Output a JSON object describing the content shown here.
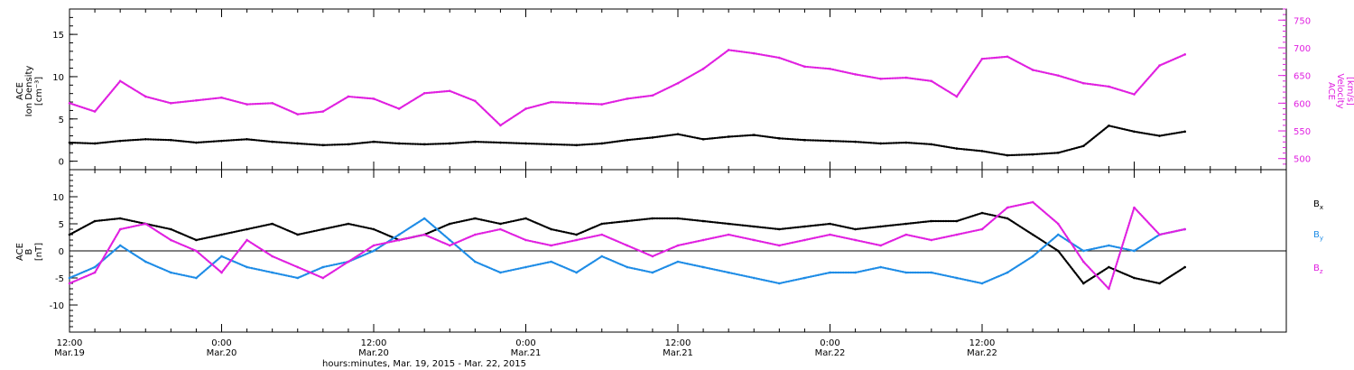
{
  "chart_data": [
    {
      "type": "scatter",
      "title": "",
      "xlabel": "hours:minutes, Mar. 19, 2015 - Mar. 22, 2015",
      "ylabel_left": [
        "ACE",
        "Ion Density",
        "[cm⁻³]"
      ],
      "ylabel_right": [
        "ACE",
        "Velocity",
        "[km/s]"
      ],
      "xlim_hours": [
        0,
        96
      ],
      "ylim_left": [
        -1,
        18
      ],
      "yticks_left": [
        0,
        5,
        10,
        15
      ],
      "ylim_right": [
        480,
        770
      ],
      "yticks_right": [
        500,
        550,
        600,
        650,
        700,
        750
      ],
      "colors": {
        "density": "#000000",
        "velocity": "#e020e0"
      },
      "series": [
        {
          "name": "Ion Density",
          "axis": "left",
          "x_hours": [
            0,
            2,
            4,
            6,
            8,
            10,
            12,
            14,
            16,
            18,
            20,
            22,
            24,
            26,
            28,
            30,
            32,
            34,
            36,
            38,
            40,
            42,
            44,
            46,
            48,
            50,
            52,
            54,
            56,
            58,
            60,
            62,
            64,
            66,
            68,
            70,
            72,
            74,
            76,
            78,
            80,
            82,
            84,
            86,
            88
          ],
          "values": [
            2.2,
            2.1,
            2.4,
            2.6,
            2.5,
            2.2,
            2.4,
            2.6,
            2.3,
            2.1,
            1.9,
            2.0,
            2.3,
            2.1,
            2.0,
            2.1,
            2.3,
            2.2,
            2.1,
            2.0,
            1.9,
            2.1,
            2.5,
            2.8,
            3.2,
            2.6,
            2.9,
            3.1,
            2.7,
            2.5,
            2.4,
            2.3,
            2.1,
            2.2,
            2.0,
            1.5,
            1.2,
            0.7,
            0.8,
            1.0,
            1.8,
            4.2,
            3.5,
            3.0,
            3.5
          ]
        },
        {
          "name": "Velocity",
          "axis": "right",
          "x_hours": [
            0,
            2,
            4,
            6,
            8,
            10,
            12,
            14,
            16,
            18,
            20,
            22,
            24,
            26,
            28,
            30,
            32,
            34,
            36,
            38,
            40,
            42,
            44,
            46,
            48,
            50,
            52,
            54,
            56,
            58,
            60,
            62,
            64,
            66,
            68,
            70,
            72,
            74,
            76,
            78,
            80,
            82,
            84,
            86,
            88
          ],
          "values": [
            600,
            585,
            640,
            612,
            600,
            605,
            610,
            598,
            600,
            580,
            585,
            612,
            608,
            590,
            618,
            622,
            604,
            560,
            590,
            602,
            600,
            598,
            608,
            614,
            636,
            662,
            696,
            690,
            682,
            666,
            662,
            652,
            644,
            646,
            640,
            612,
            680,
            684,
            660,
            650,
            636,
            630,
            616,
            668,
            688
          ]
        }
      ]
    },
    {
      "type": "scatter",
      "title": "",
      "xlabel": "hours:minutes, Mar. 19, 2015 - Mar. 22, 2015",
      "ylabel_left": [
        "ACE",
        "B",
        "[nT]"
      ],
      "xlim_hours": [
        0,
        96
      ],
      "ylim_left": [
        -15,
        15
      ],
      "yticks_left": [
        -10,
        -5,
        0,
        5,
        10
      ],
      "zero_line": true,
      "legend": [
        "Bx",
        "By",
        "Bz"
      ],
      "legend_placement": "right",
      "colors": {
        "Bx": "#000000",
        "By": "#1e8ce6",
        "Bz": "#e020e0"
      },
      "series": [
        {
          "name": "Bx",
          "x_hours": [
            0,
            2,
            4,
            6,
            8,
            10,
            12,
            14,
            16,
            18,
            20,
            22,
            24,
            26,
            28,
            30,
            32,
            34,
            36,
            38,
            40,
            42,
            44,
            46,
            48,
            50,
            52,
            54,
            56,
            58,
            60,
            62,
            64,
            66,
            68,
            70,
            72,
            74,
            76,
            78,
            80,
            82,
            84,
            86,
            88
          ],
          "values": [
            3,
            5.5,
            6,
            5,
            4,
            2,
            3,
            4,
            5,
            3,
            4,
            5,
            4,
            2,
            3,
            5,
            6,
            5,
            6,
            4,
            3,
            5,
            5.5,
            6,
            6,
            5.5,
            5,
            4.5,
            4,
            4.5,
            5,
            4,
            4.5,
            5,
            5.5,
            5.5,
            7,
            6,
            3,
            0,
            -6,
            -3,
            -5,
            -6,
            -3
          ]
        },
        {
          "name": "By",
          "x_hours": [
            0,
            2,
            4,
            6,
            8,
            10,
            12,
            14,
            16,
            18,
            20,
            22,
            24,
            26,
            28,
            30,
            32,
            34,
            36,
            38,
            40,
            42,
            44,
            46,
            48,
            50,
            52,
            54,
            56,
            58,
            60,
            62,
            64,
            66,
            68,
            70,
            72,
            74,
            76,
            78,
            80,
            82,
            84,
            86,
            88
          ],
          "values": [
            -5,
            -3,
            1,
            -2,
            -4,
            -5,
            -1,
            -3,
            -4,
            -5,
            -3,
            -2,
            0,
            3,
            6,
            2,
            -2,
            -4,
            -3,
            -2,
            -4,
            -1,
            -3,
            -4,
            -2,
            -3,
            -4,
            -5,
            -6,
            -5,
            -4,
            -4,
            -3,
            -4,
            -4,
            -5,
            -6,
            -4,
            -1,
            3,
            0,
            1,
            0,
            3,
            4
          ]
        },
        {
          "name": "Bz",
          "x_hours": [
            0,
            2,
            4,
            6,
            8,
            10,
            12,
            14,
            16,
            18,
            20,
            22,
            24,
            26,
            28,
            30,
            32,
            34,
            36,
            38,
            40,
            42,
            44,
            46,
            48,
            50,
            52,
            54,
            56,
            58,
            60,
            62,
            64,
            66,
            68,
            70,
            72,
            74,
            76,
            78,
            80,
            82,
            84,
            86,
            88
          ],
          "values": [
            -6,
            -4,
            4,
            5,
            2,
            0,
            -4,
            2,
            -1,
            -3,
            -5,
            -2,
            1,
            2,
            3,
            1,
            3,
            4,
            2,
            1,
            2,
            3,
            1,
            -1,
            1,
            2,
            3,
            2,
            1,
            2,
            3,
            2,
            1,
            3,
            2,
            3,
            4,
            8,
            9,
            5,
            -2,
            -7,
            8,
            3,
            4
          ]
        }
      ]
    }
  ],
  "x_axis": {
    "ticks": [
      {
        "hour": 0,
        "time": "12:00",
        "date": "Mar.19"
      },
      {
        "hour": 12,
        "time": "0:00",
        "date": "Mar.20"
      },
      {
        "hour": 24,
        "time": "12:00",
        "date": "Mar.20"
      },
      {
        "hour": 36,
        "time": "0:00",
        "date": "Mar.21"
      },
      {
        "hour": 48,
        "time": "12:00",
        "date": "Mar.21"
      },
      {
        "hour": 60,
        "time": "0:00",
        "date": "Mar.22"
      },
      {
        "hour": 72,
        "time": "12:00",
        "date": "Mar.22"
      }
    ],
    "label": "hours:minutes, Mar. 19, 2015 - Mar. 22, 2015"
  },
  "legend": {
    "bx": {
      "base": "B",
      "sub": "x"
    },
    "by": {
      "base": "B",
      "sub": "y"
    },
    "bz": {
      "base": "B",
      "sub": "z"
    }
  },
  "labels": {
    "top_left": [
      "ACE",
      "Ion Density",
      "[cm⁻³]"
    ],
    "top_right": [
      "ACE",
      "Velocity",
      "[km/s]"
    ],
    "bottom_left": [
      "ACE",
      "B",
      "[nT]"
    ]
  }
}
